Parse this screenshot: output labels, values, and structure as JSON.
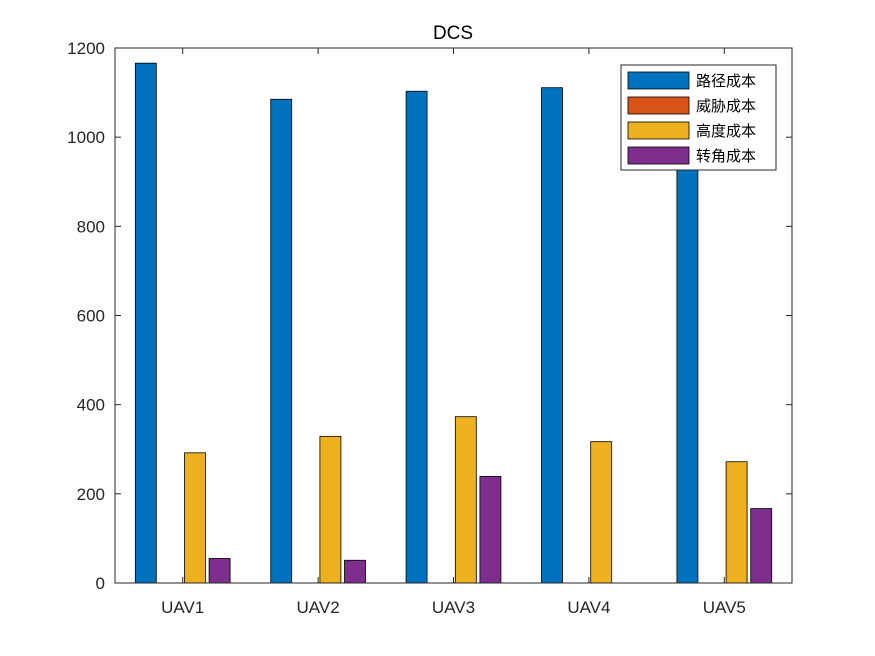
{
  "chart_data": {
    "type": "bar",
    "title": "DCS",
    "xlabel": "",
    "ylabel": "",
    "categories": [
      "UAV1",
      "UAV2",
      "UAV3",
      "UAV4",
      "UAV5"
    ],
    "ylim": [
      0,
      1200
    ],
    "yticks": [
      0,
      200,
      400,
      600,
      800,
      1000,
      1200
    ],
    "legend_position": "top-right",
    "grid": false,
    "series": [
      {
        "name": "路径成本",
        "color": "#0072BD",
        "values": [
          1166,
          1085,
          1103,
          1111,
          958
        ]
      },
      {
        "name": "威胁成本",
        "color": "#D95319",
        "values": [
          0,
          0,
          0,
          0,
          0
        ]
      },
      {
        "name": "高度成本",
        "color": "#EDB120",
        "values": [
          292,
          329,
          373,
          317,
          272
        ]
      },
      {
        "name": "转角成本",
        "color": "#7E2F8E",
        "values": [
          55,
          51,
          239,
          0,
          167
        ]
      }
    ]
  }
}
